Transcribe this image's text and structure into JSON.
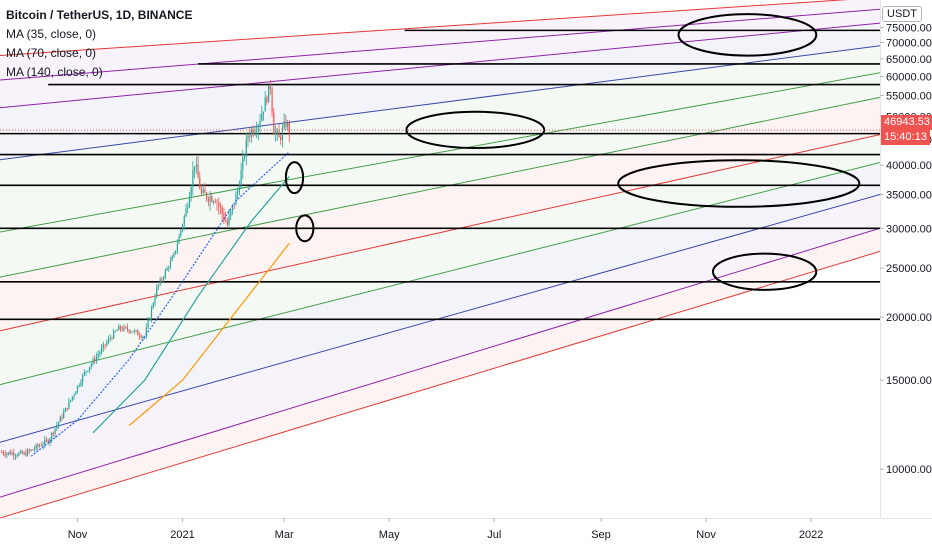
{
  "legend": {
    "title": "Bitcoin / TetherUS, 1D, BINANCE",
    "indicators": [
      "MA (35, close, 0)",
      "MA (70, close, 0)",
      "MA (140, close, 0)"
    ]
  },
  "currency": "USDT",
  "price_label": "46943.53",
  "countdown_label": "15:40:13",
  "colors": {
    "price_badge": "#ef5350",
    "countdown_badge": "#ef5350",
    "candle_up": "#26a69a",
    "candle_down": "#ef5350",
    "ma35": "#2962ff",
    "ma70": "#26a69a",
    "ma140": "#ff9800",
    "channel_red": "#e53935",
    "channel_purple": "#8e24aa",
    "channel_blue": "#3949ab",
    "channel_green": "#43a047",
    "horizontal": "#000000",
    "annotation": "#000000"
  },
  "chart_data": {
    "type": "candlestick",
    "y_scale": "log",
    "ylim": [
      8000,
      85000
    ],
    "xlim": [
      "2020-09-17",
      "2022-02-10"
    ],
    "grid": false,
    "y_ticks": [
      10000,
      15000,
      20000,
      25000,
      30000,
      35000,
      40000,
      45000,
      50000,
      55000,
      60000,
      65000,
      70000,
      75000
    ],
    "y_tick_labels": [
      "10000.00",
      "15000.00",
      "20000.00",
      "25000.00",
      "30000.00",
      "35000.00",
      "40000.00",
      "45000.00",
      "50000.00",
      "55000.00",
      "60000.00",
      "65000.00",
      "70000.00",
      "75000.00"
    ],
    "x_ticks": [
      "2020-11-01",
      "2021-01-01",
      "2021-03-01",
      "2021-05-01",
      "2021-07-01",
      "2021-09-01",
      "2021-11-01",
      "2022-01-01"
    ],
    "x_tick_labels": [
      "Nov",
      "2021",
      "Mar",
      "May",
      "Jul",
      "Sep",
      "Nov",
      "2022"
    ],
    "last_price": 46943.53,
    "price_path": [
      [
        "2020-09-17",
        10800
      ],
      [
        "2020-10-01",
        10700
      ],
      [
        "2020-10-15",
        11400
      ],
      [
        "2020-10-25",
        13100
      ],
      [
        "2020-11-05",
        15500
      ],
      [
        "2020-11-20",
        18200
      ],
      [
        "2020-11-25",
        19000
      ],
      [
        "2020-12-01",
        18900
      ],
      [
        "2020-12-10",
        18300
      ],
      [
        "2020-12-17",
        22800
      ],
      [
        "2020-12-27",
        26500
      ],
      [
        "2021-01-03",
        32500
      ],
      [
        "2021-01-08",
        40500
      ],
      [
        "2021-01-12",
        35000
      ],
      [
        "2021-01-20",
        34500
      ],
      [
        "2021-01-27",
        30500
      ],
      [
        "2021-02-02",
        35500
      ],
      [
        "2021-02-08",
        46000
      ],
      [
        "2021-02-14",
        48500
      ],
      [
        "2021-02-21",
        57500
      ],
      [
        "2021-02-23",
        47000
      ],
      [
        "2021-02-26",
        45000
      ],
      [
        "2021-03-02",
        48500
      ],
      [
        "2021-03-04",
        46943.53
      ]
    ],
    "ma35": [
      [
        "2020-10-05",
        10600
      ],
      [
        "2020-11-01",
        12500
      ],
      [
        "2020-12-01",
        16500
      ],
      [
        "2021-01-01",
        23500
      ],
      [
        "2021-02-01",
        34000
      ],
      [
        "2021-03-04",
        42500
      ]
    ],
    "ma70": [
      [
        "2020-11-10",
        11800
      ],
      [
        "2020-12-10",
        15000
      ],
      [
        "2021-01-10",
        22000
      ],
      [
        "2021-02-10",
        31000
      ],
      [
        "2021-03-04",
        38000
      ]
    ],
    "ma140": [
      [
        "2020-12-01",
        12200
      ],
      [
        "2021-01-01",
        15000
      ],
      [
        "2021-02-01",
        20500
      ],
      [
        "2021-03-04",
        28000
      ]
    ],
    "horizontal_levels": [
      {
        "price": 74000,
        "from": "2021-05-10"
      },
      {
        "price": 63500,
        "from": "2021-01-10"
      },
      {
        "price": 57800,
        "from": "2020-10-15"
      },
      {
        "price": 46200,
        "from": "2020-09-17"
      },
      {
        "price": 42000,
        "from": "2020-09-17"
      },
      {
        "price": 36500,
        "from": "2020-09-17"
      },
      {
        "price": 30000,
        "from": "2020-09-17"
      },
      {
        "price": 23500,
        "from": "2020-09-17"
      },
      {
        "price": 19800,
        "from": "2020-09-17"
      }
    ],
    "channel_lines": [
      {
        "color": "red",
        "start": [
          "2020-09-17",
          66000
        ],
        "end": [
          "2022-02-10",
          86000
        ]
      },
      {
        "color": "purple",
        "start": [
          "2020-09-17",
          59000
        ],
        "end": [
          "2022-02-10",
          81500
        ]
      },
      {
        "color": "purple",
        "start": [
          "2020-09-17",
          52000
        ],
        "end": [
          "2022-02-10",
          76500
        ]
      },
      {
        "color": "blue",
        "start": [
          "2020-09-17",
          41000
        ],
        "end": [
          "2022-02-10",
          69000
        ]
      },
      {
        "color": "green",
        "start": [
          "2020-09-17",
          29500
        ],
        "end": [
          "2022-02-10",
          61000
        ]
      },
      {
        "color": "green",
        "start": [
          "2020-09-17",
          24000
        ],
        "end": [
          "2022-02-10",
          54500
        ]
      },
      {
        "color": "red",
        "start": [
          "2020-09-17",
          18800
        ],
        "end": [
          "2022-02-10",
          46000
        ]
      },
      {
        "color": "green",
        "start": [
          "2020-09-17",
          14700
        ],
        "end": [
          "2022-02-10",
          40500
        ]
      },
      {
        "color": "blue",
        "start": [
          "2020-09-17",
          11300
        ],
        "end": [
          "2022-02-10",
          35000
        ]
      },
      {
        "color": "purple",
        "start": [
          "2020-09-17",
          8800
        ],
        "end": [
          "2022-02-10",
          30000
        ]
      },
      {
        "color": "red",
        "start": [
          "2020-09-17",
          8000
        ],
        "end": [
          "2022-02-10",
          27000
        ]
      }
    ],
    "annotations": [
      {
        "shape": "ellipse",
        "center": [
          "2021-11-25",
          72500
        ],
        "rx_days": 40,
        "ry_frac": 0.04
      },
      {
        "shape": "ellipse",
        "center": [
          "2021-06-20",
          47000
        ],
        "rx_days": 40,
        "ry_frac": 0.035
      },
      {
        "shape": "ellipse",
        "center": [
          "2021-03-07",
          37800
        ],
        "rx_days": 5,
        "ry_frac": 0.03
      },
      {
        "shape": "ellipse",
        "center": [
          "2021-11-20",
          36800
        ],
        "rx_days": 70,
        "ry_frac": 0.045
      },
      {
        "shape": "ellipse",
        "center": [
          "2021-03-13",
          30000
        ],
        "rx_days": 5,
        "ry_frac": 0.025
      },
      {
        "shape": "ellipse",
        "center": [
          "2021-12-05",
          24600
        ],
        "rx_days": 30,
        "ry_frac": 0.035
      }
    ]
  }
}
